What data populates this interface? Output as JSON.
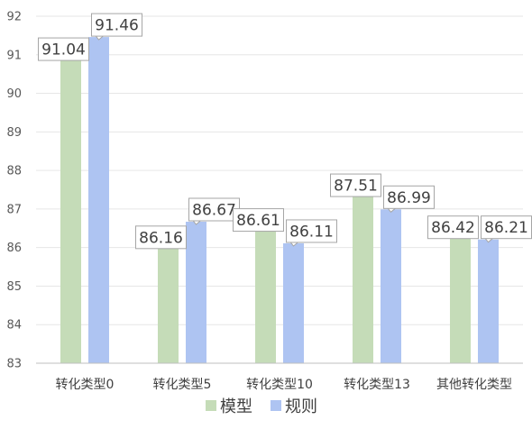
{
  "chart_data": {
    "type": "bar",
    "title": "",
    "xlabel": "",
    "ylabel": "",
    "categories": [
      "转化类型0",
      "转化类型5",
      "转化类型10",
      "转化类型13",
      "其他转化类型"
    ],
    "series": [
      {
        "name": "模型",
        "color": "#c5dcb8",
        "values": [
          91.04,
          86.16,
          86.61,
          87.51,
          86.42
        ]
      },
      {
        "name": "规则",
        "color": "#aec4f2",
        "values": [
          91.46,
          86.67,
          86.11,
          86.99,
          86.21
        ]
      }
    ],
    "ylim": [
      83,
      92
    ],
    "yticks": [
      83,
      84,
      85,
      86,
      87,
      88,
      89,
      90,
      91,
      92
    ],
    "grid": true,
    "legend": "bottom",
    "data_labels": true
  }
}
